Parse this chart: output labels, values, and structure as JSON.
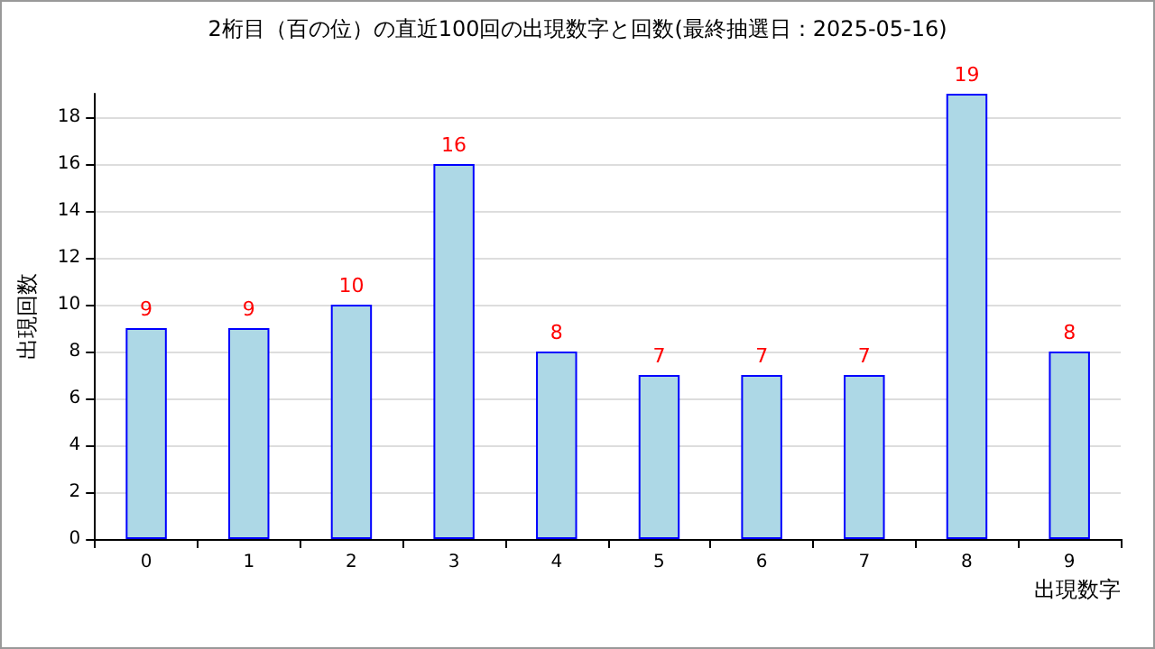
{
  "chart_data": {
    "type": "bar",
    "title": "2桁目（百の位）の直近100回の出現数字と回数(最終抽選日：2025-05-16)",
    "xlabel": "出現数字",
    "ylabel": "出現回数",
    "categories": [
      "0",
      "1",
      "2",
      "3",
      "4",
      "5",
      "6",
      "7",
      "8",
      "9"
    ],
    "values": [
      9,
      9,
      10,
      16,
      8,
      7,
      7,
      7,
      19,
      8
    ],
    "color": "#add8e6",
    "data_labels": true,
    "ylim": [
      0,
      19
    ],
    "yticks": [
      0,
      2,
      4,
      6,
      8,
      10,
      12,
      14,
      16,
      18
    ],
    "grid": "y"
  }
}
